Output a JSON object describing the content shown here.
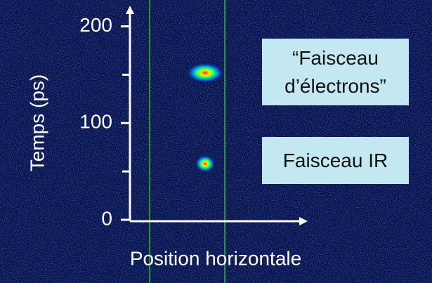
{
  "chart_data": {
    "type": "image",
    "ylabel": "Temps (ps)",
    "xlabel": "Position horizontale",
    "ylim": [
      0,
      220
    ],
    "yticks": [
      0,
      100,
      200
    ],
    "minor_yticks": [
      50,
      150
    ],
    "categories": [
      "“Faisceau\nd’électrons”",
      "Faisceau IR"
    ],
    "values": [
      152,
      58
    ],
    "color": "#00ff66"
  }
}
